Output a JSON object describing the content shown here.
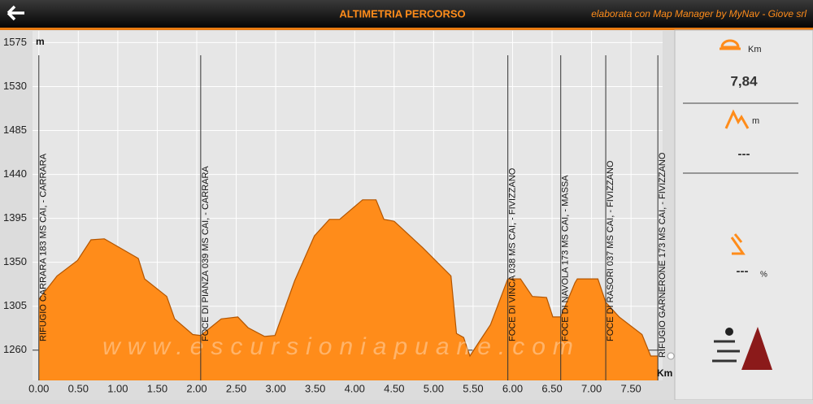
{
  "header": {
    "title": "ALTIMETRIA PERCORSO",
    "credit": "elaborata con Map Manager by MyNav - Giove srl"
  },
  "chart_data": {
    "type": "area",
    "y_unit": "m",
    "x_unit": "Km",
    "watermark": "www.escursioniapuane.com",
    "color": "#ff8c1a",
    "x": [
      0,
      0.23,
      0.49,
      0.66,
      0.83,
      1.26,
      1.34,
      1.62,
      1.72,
      1.95,
      2.05,
      2.31,
      2.52,
      2.65,
      2.86,
      2.99,
      3.24,
      3.49,
      3.68,
      3.81,
      4.1,
      4.27,
      4.37,
      4.5,
      4.86,
      5.22,
      5.29,
      5.38,
      5.46,
      5.58,
      5.72,
      5.94,
      6.1,
      6.25,
      6.43,
      6.51,
      6.61,
      6.79,
      6.82,
      7.08,
      7.18,
      7.35,
      7.64,
      7.75,
      7.84
    ],
    "values": [
      1312,
      1336,
      1352,
      1373,
      1374,
      1354,
      1333,
      1315,
      1292,
      1276,
      1275,
      1292,
      1294,
      1283,
      1274,
      1275,
      1331,
      1377,
      1394,
      1394,
      1414,
      1414,
      1394,
      1392,
      1365,
      1336,
      1277,
      1273,
      1254,
      1269,
      1286,
      1333,
      1333,
      1315,
      1314,
      1294,
      1294,
      1329,
      1333,
      1333,
      1309,
      1294,
      1276,
      1254,
      1254
    ],
    "xlim": [
      -0.08,
      7.9
    ],
    "ylim": [
      1229,
      1587
    ],
    "xticks": [
      {
        "value": 0,
        "label": "0.00"
      },
      {
        "value": 0.5,
        "label": "0.50"
      },
      {
        "value": 1,
        "label": "1.00"
      },
      {
        "value": 1.5,
        "label": "1.50"
      },
      {
        "value": 2,
        "label": "2.00"
      },
      {
        "value": 2.5,
        "label": "2.50"
      },
      {
        "value": 3,
        "label": "3.00"
      },
      {
        "value": 3.5,
        "label": "3.50"
      },
      {
        "value": 4,
        "label": "4.00"
      },
      {
        "value": 4.5,
        "label": "4.50"
      },
      {
        "value": 5,
        "label": "5.00"
      },
      {
        "value": 5.5,
        "label": "5.50"
      },
      {
        "value": 6,
        "label": "6.00"
      },
      {
        "value": 6.5,
        "label": "6.50"
      },
      {
        "value": 7,
        "label": "7.00"
      },
      {
        "value": 7.5,
        "label": "7.50"
      }
    ],
    "yticks": [
      1260,
      1305,
      1350,
      1395,
      1440,
      1485,
      1530,
      1575
    ],
    "grid": true,
    "waypoints": [
      {
        "name": "RIFUGIO CARRARA 183 MS CAI,  - CARRARA",
        "x": 0
      },
      {
        "name": "FOCE DI PIANZA 039 MS CAI,  - CARRARA",
        "x": 2.05
      },
      {
        "name": "FOCE DI VINCA 038 MS CAI,  - FIVIZZANO",
        "x": 5.94
      },
      {
        "name": "FOCE DI NAVOLA 173 MS CAI,  - MASSA",
        "x": 6.61
      },
      {
        "name": "FOCE DI RASORI 037 MS CAI,  - FIVIZZANO",
        "x": 7.18
      },
      {
        "name": "RIFUGIO GARNERONE 173 MS CAI,  - FIVIZZANO",
        "x": 7.84
      }
    ]
  },
  "panel": {
    "distance": {
      "unit": "Km",
      "value": "7,84"
    },
    "elevation": {
      "unit": "m",
      "value": "---"
    },
    "slope": {
      "value": "---",
      "unit": "%"
    }
  }
}
